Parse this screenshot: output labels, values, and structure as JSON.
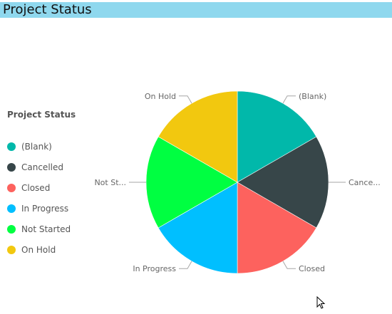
{
  "header": {
    "title": "Project Status"
  },
  "legend": {
    "title": "Project Status"
  },
  "chart_data": {
    "type": "pie",
    "categories": [
      "(Blank)",
      "Cancelled",
      "Closed",
      "In Progress",
      "Not Started",
      "On Hold"
    ],
    "values": [
      1,
      1,
      1,
      1,
      1,
      1
    ],
    "colors": [
      "#01b8aa",
      "#374649",
      "#fd625e",
      "#00bfff",
      "#00ff41",
      "#f2c80f"
    ],
    "slice_labels": [
      "(Blank)",
      "Cance...",
      "Closed",
      "In Progress",
      "Not St...",
      "On Hold"
    ],
    "legend_title": "Project Status",
    "legend_position": "left",
    "start_angle_deg": 0,
    "direction": "clockwise"
  }
}
